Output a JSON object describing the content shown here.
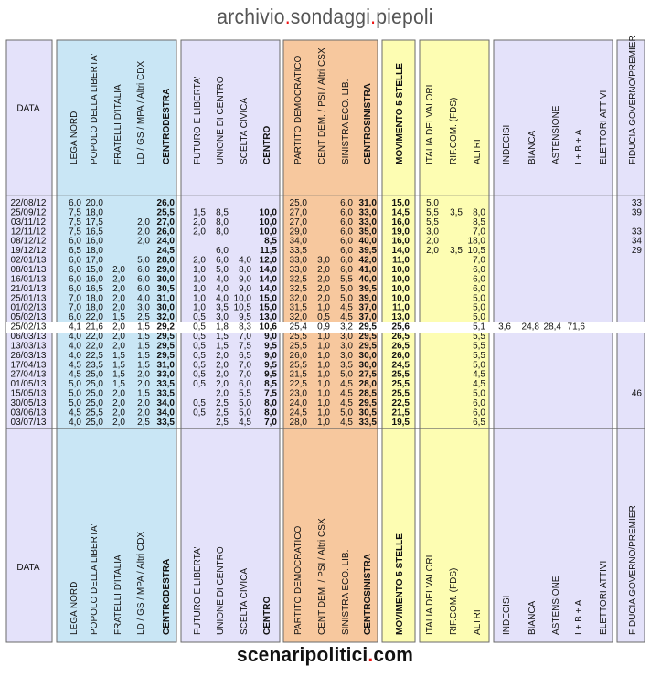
{
  "header": {
    "title_parts": [
      "archivio",
      ".",
      "sondaggi",
      ".",
      "piepoli"
    ]
  },
  "footer": {
    "title_parts": [
      "scenaripolitici",
      ".",
      "com"
    ]
  },
  "colors": {
    "data": "#e4e2fa",
    "cdx": "#c9e6f5",
    "centro": "#e4e2fa",
    "csx": "#f7c89e",
    "m5s": "#fdfdb2",
    "altri": "#fdfdb2",
    "astenuti": "#e4e2fa",
    "fiducia": "#e4e2fa",
    "highlight": "#ffffff",
    "separator": "#666666"
  },
  "chart_data": {
    "type": "table",
    "groups": [
      {
        "key": "data",
        "color_key": "data",
        "columns": [
          "DATA"
        ]
      },
      {
        "key": "cdx",
        "color_key": "cdx",
        "columns": [
          "LEGA NORD",
          "POPOLO DELLA LIBERTA'",
          "FRATELLI D'ITALIA",
          "LD / GS / MPA / Altri CDX",
          "CENTRODESTRA"
        ]
      },
      {
        "key": "centro",
        "color_key": "centro",
        "columns": [
          "FUTURO E LIBERTA'",
          "UNIONE DI CENTRO",
          "SCELTA CIVICA",
          "CENTRO"
        ]
      },
      {
        "key": "csx",
        "color_key": "csx",
        "columns": [
          "PARTITO DEMOCRATICO",
          "CENT DEM. / PSI / Altri CSX",
          "SINISTRA ECO. LIB.",
          "CENTROSINISTRA"
        ]
      },
      {
        "key": "m5s",
        "color_key": "m5s",
        "columns": [
          "MOVIMENTO 5 STELLE"
        ]
      },
      {
        "key": "altri",
        "color_key": "altri",
        "columns": [
          "ITALIA DEI VALORI",
          "RIF.COM. (FDS)",
          "ALTRI"
        ]
      },
      {
        "key": "astenuti",
        "color_key": "astenuti",
        "columns": [
          "INDECISI",
          "BIANCA",
          "ASTENSIONE",
          "I + B + A",
          "ELETTORI ATTIVI"
        ]
      },
      {
        "key": "fiducia",
        "color_key": "fiducia",
        "columns": [
          "FIDUCIA GOVERNO/PREMIER"
        ]
      }
    ],
    "bold_columns": [
      "CENTRODESTRA",
      "CENTRO",
      "CENTROSINISTRA",
      "MOVIMENTO 5 STELLE"
    ],
    "highlight_row_index": 13,
    "rows": [
      [
        "22/08/12",
        "6,0",
        "20,0",
        "",
        "",
        "26,0",
        "",
        "",
        "",
        "",
        "25,0",
        "",
        "6,0",
        "31,0",
        "15,0",
        "5,0",
        "",
        "",
        "",
        "",
        "",
        "",
        "",
        "33"
      ],
      [
        "25/09/12",
        "7,5",
        "18,0",
        "",
        "",
        "25,5",
        "1,5",
        "8,5",
        "",
        "10,0",
        "27,0",
        "",
        "6,0",
        "33,0",
        "14,5",
        "5,5",
        "3,5",
        "8,0",
        "",
        "",
        "",
        "",
        "",
        "39"
      ],
      [
        "03/11/12",
        "7,5",
        "17,5",
        "",
        "2,0",
        "27,0",
        "2,0",
        "8,0",
        "",
        "10,0",
        "27,0",
        "",
        "6,0",
        "33,0",
        "16,0",
        "5,5",
        "",
        "8,5",
        "",
        "",
        "",
        "",
        "",
        ""
      ],
      [
        "12/11/12",
        "7,5",
        "16,5",
        "",
        "2,0",
        "26,0",
        "2,0",
        "8,0",
        "",
        "10,0",
        "29,0",
        "",
        "6,0",
        "35,0",
        "19,0",
        "3,0",
        "",
        "7,0",
        "",
        "",
        "",
        "",
        "",
        "33"
      ],
      [
        "08/12/12",
        "6,0",
        "16,0",
        "",
        "2,0",
        "24,0",
        "",
        "",
        "",
        "8,5",
        "34,0",
        "",
        "6,0",
        "40,0",
        "16,0",
        "2,0",
        "",
        "18,0",
        "",
        "",
        "",
        "",
        "",
        "34"
      ],
      [
        "19/12/12",
        "6,5",
        "18,0",
        "",
        "",
        "24,5",
        "",
        "6,0",
        "",
        "11,5",
        "33,5",
        "",
        "6,0",
        "39,5",
        "14,0",
        "2,0",
        "3,5",
        "10,5",
        "",
        "",
        "",
        "",
        "",
        "29"
      ],
      [
        "02/01/13",
        "6,0",
        "17,0",
        "",
        "5,0",
        "28,0",
        "2,0",
        "6,0",
        "4,0",
        "12,0",
        "33,0",
        "3,0",
        "6,0",
        "42,0",
        "11,0",
        "",
        "",
        "7,0",
        "",
        "",
        "",
        "",
        "",
        ""
      ],
      [
        "08/01/13",
        "6,0",
        "15,0",
        "2,0",
        "6,0",
        "29,0",
        "1,0",
        "5,0",
        "8,0",
        "14,0",
        "33,0",
        "2,0",
        "6,0",
        "41,0",
        "10,0",
        "",
        "",
        "6,0",
        "",
        "",
        "",
        "",
        "",
        ""
      ],
      [
        "16/01/13",
        "6,0",
        "16,0",
        "2,0",
        "6,0",
        "30,0",
        "1,0",
        "4,0",
        "9,0",
        "14,0",
        "32,5",
        "2,0",
        "5,5",
        "40,0",
        "10,0",
        "",
        "",
        "6,0",
        "",
        "",
        "",
        "",
        "",
        ""
      ],
      [
        "21/01/13",
        "6,0",
        "16,5",
        "2,0",
        "6,0",
        "30,5",
        "1,0",
        "4,0",
        "9,0",
        "14,0",
        "32,5",
        "2,0",
        "5,0",
        "39,5",
        "10,0",
        "",
        "",
        "6,0",
        "",
        "",
        "",
        "",
        "",
        ""
      ],
      [
        "25/01/13",
        "7,0",
        "18,0",
        "2,0",
        "4,0",
        "31,0",
        "1,0",
        "4,0",
        "10,0",
        "15,0",
        "32,0",
        "2,0",
        "5,0",
        "39,0",
        "10,0",
        "",
        "",
        "5,0",
        "",
        "",
        "",
        "",
        "",
        ""
      ],
      [
        "01/02/13",
        "7,0",
        "18,0",
        "2,0",
        "3,0",
        "30,0",
        "1,0",
        "3,5",
        "10,5",
        "15,0",
        "31,5",
        "1,0",
        "4,5",
        "37,0",
        "11,0",
        "",
        "",
        "5,0",
        "",
        "",
        "",
        "",
        "",
        ""
      ],
      [
        "05/02/13",
        "6,0",
        "22,0",
        "1,5",
        "2,5",
        "32,0",
        "0,5",
        "3,0",
        "9,5",
        "13,0",
        "32,0",
        "0,5",
        "4,5",
        "37,0",
        "13,0",
        "",
        "",
        "5,0",
        "",
        "",
        "",
        "",
        "",
        ""
      ],
      [
        "25/02/13",
        "4,1",
        "21,6",
        "2,0",
        "1,5",
        "29,2",
        "0,5",
        "1,8",
        "8,3",
        "10,6",
        "25,4",
        "0,9",
        "3,2",
        "29,5",
        "25,6",
        "",
        "",
        "5,1",
        "3,6",
        "24,8",
        "28,4",
        "71,6",
        "",
        ""
      ],
      [
        "06/03/13",
        "4,0",
        "22,0",
        "2,0",
        "1,5",
        "29,5",
        "0,5",
        "1,5",
        "7,0",
        "9,0",
        "25,5",
        "1,0",
        "3,0",
        "29,5",
        "26,5",
        "",
        "",
        "5,5",
        "",
        "",
        "",
        "",
        "",
        ""
      ],
      [
        "13/03/13",
        "4,0",
        "22,0",
        "2,0",
        "1,5",
        "29,5",
        "0,5",
        "1,5",
        "7,5",
        "9,5",
        "25,5",
        "1,0",
        "3,0",
        "29,5",
        "26,5",
        "",
        "",
        "5,5",
        "",
        "",
        "",
        "",
        "",
        ""
      ],
      [
        "26/03/13",
        "4,0",
        "22,5",
        "1,5",
        "1,5",
        "29,5",
        "0,5",
        "2,0",
        "6,5",
        "9,0",
        "26,0",
        "1,0",
        "3,0",
        "30,0",
        "26,0",
        "",
        "",
        "5,5",
        "",
        "",
        "",
        "",
        "",
        ""
      ],
      [
        "17/04/13",
        "4,5",
        "23,5",
        "1,5",
        "1,5",
        "31,0",
        "0,5",
        "2,0",
        "7,0",
        "9,5",
        "25,5",
        "1,0",
        "3,5",
        "30,0",
        "24,5",
        "",
        "",
        "5,0",
        "",
        "",
        "",
        "",
        "",
        ""
      ],
      [
        "27/04/13",
        "4,5",
        "25,0",
        "1,5",
        "2,0",
        "33,0",
        "0,5",
        "2,0",
        "7,0",
        "9,5",
        "21,5",
        "1,0",
        "5,0",
        "27,5",
        "25,5",
        "",
        "",
        "4,5",
        "",
        "",
        "",
        "",
        "",
        ""
      ],
      [
        "01/05/13",
        "5,0",
        "25,0",
        "1,5",
        "2,0",
        "33,5",
        "0,5",
        "2,0",
        "6,0",
        "8,5",
        "22,5",
        "1,0",
        "4,5",
        "28,0",
        "25,5",
        "",
        "",
        "4,5",
        "",
        "",
        "",
        "",
        "",
        ""
      ],
      [
        "15/05/13",
        "5,0",
        "25,0",
        "2,0",
        "1,5",
        "33,5",
        "",
        "2,0",
        "5,5",
        "7,5",
        "23,0",
        "1,0",
        "4,5",
        "28,5",
        "25,5",
        "",
        "",
        "5,0",
        "",
        "",
        "",
        "",
        "",
        "46"
      ],
      [
        "30/05/13",
        "5,0",
        "25,0",
        "2,0",
        "2,0",
        "34,0",
        "0,5",
        "2,5",
        "5,0",
        "8,0",
        "24,0",
        "1,0",
        "4,5",
        "29,5",
        "22,5",
        "",
        "",
        "6,0",
        "",
        "",
        "",
        "",
        "",
        ""
      ],
      [
        "03/06/13",
        "4,5",
        "25,5",
        "2,0",
        "2,0",
        "34,0",
        "0,5",
        "2,5",
        "5,0",
        "8,0",
        "24,5",
        "1,0",
        "5,0",
        "30,5",
        "21,5",
        "",
        "",
        "6,0",
        "",
        "",
        "",
        "",
        "",
        ""
      ],
      [
        "03/07/13",
        "4,0",
        "25,0",
        "2,0",
        "2,5",
        "33,5",
        "",
        "2,5",
        "4,5",
        "7,0",
        "28,0",
        "1,0",
        "4,5",
        "33,5",
        "19,5",
        "",
        "",
        "6,5",
        "",
        "",
        "",
        "",
        "",
        ""
      ]
    ]
  }
}
